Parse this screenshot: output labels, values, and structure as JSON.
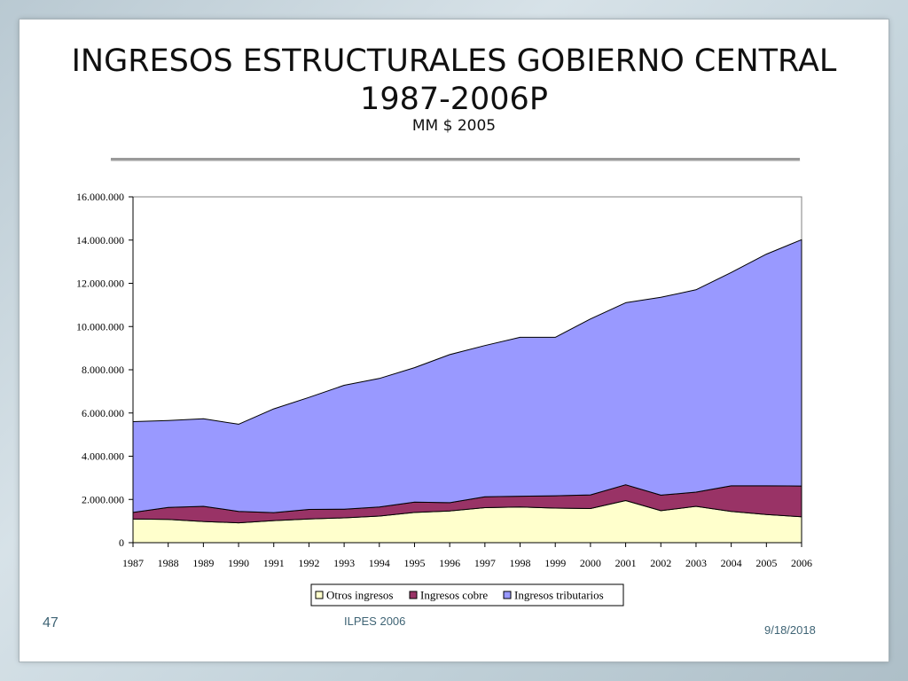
{
  "slide": {
    "title_line1": "INGRESOS ESTRUCTURALES GOBIERNO CENTRAL",
    "title_line2": "1987-2006P",
    "subtitle": "MM $ 2005",
    "page_number": "47",
    "footer_text": "ILPES 2006",
    "date": "9/18/2018"
  },
  "chart_data": {
    "type": "area",
    "stacked": true,
    "xlabel": "",
    "ylabel": "",
    "ylim": [
      0,
      16000000
    ],
    "yticks": [
      0,
      2000000,
      4000000,
      6000000,
      8000000,
      10000000,
      12000000,
      14000000,
      16000000
    ],
    "ytick_labels": [
      "0",
      "2.000.000",
      "4.000.000",
      "6.000.000",
      "8.000.000",
      "10.000.000",
      "12.000.000",
      "14.000.000",
      "16.000.000"
    ],
    "categories": [
      "1987",
      "1988",
      "1989",
      "1990",
      "1991",
      "1992",
      "1993",
      "1994",
      "1995",
      "1996",
      "1997",
      "1998",
      "1999",
      "2000",
      "2001",
      "2002",
      "2003",
      "2004",
      "2005",
      "2006"
    ],
    "legend_position": "bottom",
    "series": [
      {
        "name": "Otros ingresos",
        "color": "#ffffcc",
        "values": [
          1100000,
          1080000,
          980000,
          920000,
          1020000,
          1100000,
          1150000,
          1230000,
          1400000,
          1470000,
          1620000,
          1650000,
          1600000,
          1580000,
          1950000,
          1480000,
          1680000,
          1450000,
          1300000,
          1200000
        ]
      },
      {
        "name": "Ingresos cobre",
        "color": "#993366",
        "values": [
          300000,
          550000,
          700000,
          530000,
          370000,
          440000,
          400000,
          420000,
          480000,
          380000,
          500000,
          500000,
          570000,
          630000,
          730000,
          720000,
          660000,
          1180000,
          1330000,
          1420000
        ]
      },
      {
        "name": "Ingresos tributarios",
        "color": "#9999ff",
        "values": [
          4200000,
          4020000,
          4050000,
          4030000,
          4800000,
          5180000,
          5730000,
          5950000,
          6220000,
          6850000,
          7000000,
          7350000,
          7330000,
          8140000,
          8420000,
          9150000,
          9360000,
          9870000,
          10720000,
          11400000
        ]
      }
    ]
  }
}
